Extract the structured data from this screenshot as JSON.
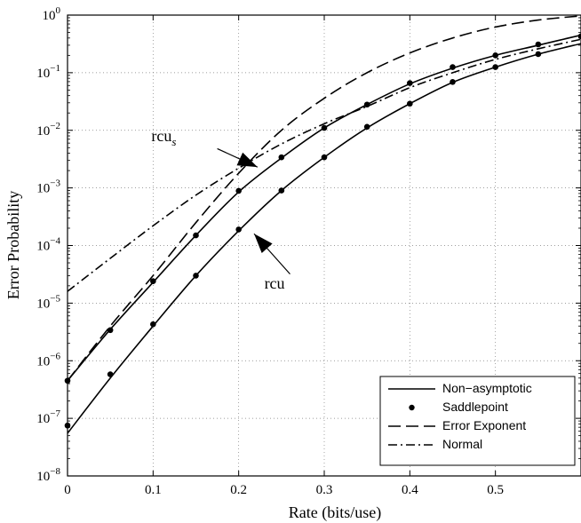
{
  "chart_data": {
    "type": "line",
    "xlabel": "Rate (bits/use)",
    "ylabel": "Error Probability",
    "xlim": [
      0,
      0.6
    ],
    "ylim": [
      1e-08,
      1
    ],
    "yscale": "log",
    "grid": true,
    "legend_position": "bottom-right",
    "x_ticks": [
      0,
      0.1,
      0.2,
      0.3,
      0.4,
      0.5
    ],
    "x_tick_labels": [
      "0",
      "0.1",
      "0.2",
      "0.3",
      "0.4",
      "0.5"
    ],
    "y_ticks": [
      1e-08,
      1e-07,
      1e-06,
      1e-05,
      0.0001,
      0.001,
      0.01,
      0.1,
      1
    ],
    "y_tick_labels": [
      {
        "base": "10",
        "exp": "−8"
      },
      {
        "base": "10",
        "exp": "−7"
      },
      {
        "base": "10",
        "exp": "−6"
      },
      {
        "base": "10",
        "exp": "−5"
      },
      {
        "base": "10",
        "exp": "−4"
      },
      {
        "base": "10",
        "exp": "−3"
      },
      {
        "base": "10",
        "exp": "−2"
      },
      {
        "base": "10",
        "exp": "−1"
      },
      {
        "base": "10",
        "exp": "0"
      }
    ],
    "series": [
      {
        "name": "Non−asymptotic",
        "style": "solid",
        "color": "#000000",
        "curves": [
          {
            "x": [
              0,
              0.05,
              0.1,
              0.15,
              0.2,
              0.25,
              0.3,
              0.35,
              0.4,
              0.45,
              0.5,
              0.55,
              0.6
            ],
            "y": [
              4.5e-07,
              3.5e-06,
              2.3e-05,
              0.00015,
              0.00085,
              0.0033,
              0.011,
              0.028,
              0.064,
              0.12,
              0.2,
              0.3,
              0.45
            ]
          },
          {
            "x": [
              0,
              0.05,
              0.1,
              0.15,
              0.2,
              0.25,
              0.3,
              0.35,
              0.4,
              0.45,
              0.5,
              0.55,
              0.6
            ],
            "y": [
              5.5e-08,
              5e-07,
              4e-06,
              3e-05,
              0.00018,
              0.0009,
              0.0034,
              0.011,
              0.029,
              0.068,
              0.125,
              0.21,
              0.32
            ]
          }
        ]
      },
      {
        "name": "Saddlepoint",
        "style": "marker",
        "color": "#000000",
        "points": [
          {
            "x": [
              0,
              0.05,
              0.1,
              0.15,
              0.2,
              0.25,
              0.3,
              0.35,
              0.4,
              0.45,
              0.5,
              0.55,
              0.6
            ],
            "y": [
              4.5e-07,
              3.4e-06,
              2.4e-05,
              0.00015,
              0.00089,
              0.0034,
              0.011,
              0.028,
              0.066,
              0.125,
              0.2,
              0.31,
              0.43
            ]
          },
          {
            "x": [
              0,
              0.05,
              0.1,
              0.15,
              0.2,
              0.25,
              0.3,
              0.35,
              0.4,
              0.45,
              0.5,
              0.55
            ],
            "y": [
              7.5e-08,
              5.8e-07,
              4.3e-06,
              3e-05,
              0.00019,
              0.0009,
              0.0034,
              0.0115,
              0.029,
              0.069,
              0.125,
              0.21
            ]
          }
        ]
      },
      {
        "name": "Error Exponent",
        "style": "dashed",
        "color": "#000000",
        "curves": [
          {
            "x": [
              0,
              0.05,
              0.1,
              0.15,
              0.2,
              0.25,
              0.3,
              0.35,
              0.4,
              0.45,
              0.5,
              0.55,
              0.6
            ],
            "y": [
              4.5e-07,
              4e-06,
              3e-05,
              0.00025,
              0.0018,
              0.01,
              0.036,
              0.1,
              0.22,
              0.4,
              0.62,
              0.82,
              0.97
            ]
          }
        ]
      },
      {
        "name": "Normal",
        "style": "dashdot",
        "color": "#000000",
        "curves": [
          {
            "x": [
              0,
              0.05,
              0.1,
              0.15,
              0.2,
              0.25,
              0.3,
              0.35,
              0.4,
              0.45,
              0.5,
              0.55,
              0.6
            ],
            "y": [
              1.6e-05,
              6e-05,
              0.00022,
              0.00075,
              0.0022,
              0.0058,
              0.013,
              0.026,
              0.055,
              0.1,
              0.17,
              0.26,
              0.38
            ]
          }
        ]
      }
    ],
    "annotations": [
      {
        "label_base": "rcu",
        "label_sub": "s",
        "text_x": 0.098,
        "text_y": 0.0065,
        "arrow_from_x": 0.175,
        "arrow_from_y": 0.0048,
        "arrow_to_x": 0.222,
        "arrow_to_y": 0.0023
      },
      {
        "label_base": "rcu",
        "label_sub": "",
        "text_x": 0.23,
        "text_y": 1.8e-05,
        "arrow_from_x": 0.26,
        "arrow_from_y": 3.2e-05,
        "arrow_to_x": 0.218,
        "arrow_to_y": 0.00016
      }
    ]
  }
}
